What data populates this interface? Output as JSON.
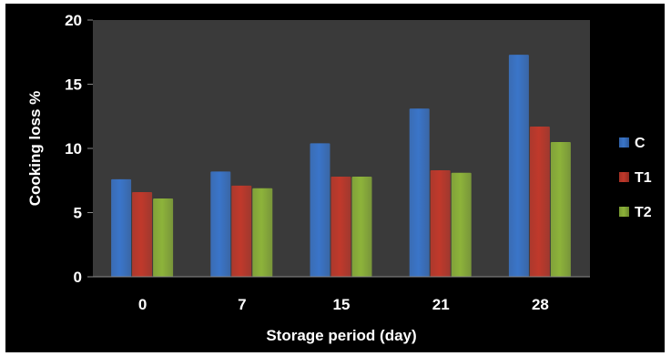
{
  "chart_data": {
    "type": "bar",
    "categories": [
      "0",
      "7",
      "15",
      "21",
      "28"
    ],
    "series": [
      {
        "name": "C",
        "values": [
          7.6,
          8.2,
          10.4,
          13.1,
          17.3
        ],
        "color": "#3a75c9"
      },
      {
        "name": "T1",
        "values": [
          6.6,
          7.1,
          7.8,
          8.3,
          11.7
        ],
        "color": "#c0392b"
      },
      {
        "name": "T2",
        "values": [
          6.1,
          6.9,
          7.8,
          8.1,
          10.5
        ],
        "color": "#8db33a"
      }
    ],
    "xlabel": "Storage period (day)",
    "ylabel": "Cooking loss %",
    "ylim": [
      0,
      20
    ],
    "yticks": [
      0,
      5,
      10,
      15,
      20
    ],
    "plot_background": "#3a3a3a",
    "background": "#000000",
    "grid": false,
    "legend_position": "right"
  }
}
